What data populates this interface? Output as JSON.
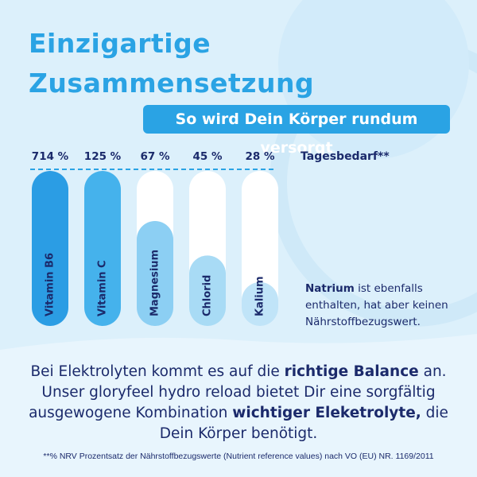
{
  "chart_data": {
    "type": "bar",
    "title": "Einzigartige Zusammensetzung",
    "subtitle": "So wird Dein Körper rundum versorgt",
    "reference_label": "Tagesbedarf**",
    "categories": [
      "Vitamin B6",
      "Vitamin C",
      "Magnesium",
      "Chlorid",
      "Kalium"
    ],
    "values": [
      714,
      125,
      67,
      45,
      28
    ],
    "value_labels": [
      "714 %",
      "125 %",
      "67 %",
      "45 %",
      "28 %"
    ],
    "colors": [
      "#2b9de4",
      "#45b2ec",
      "#8ccff3",
      "#a8dbf5",
      "#c0e4f8"
    ],
    "ylim": [
      0,
      100
    ]
  },
  "note": [
    {
      "text": "Natrium",
      "bold": true
    },
    {
      "text": " ist ebenfalls enthalten, hat aber keinen Nährstoffbezugswert.",
      "bold": false
    }
  ],
  "paragraph": [
    {
      "text": "Bei Elektrolyten kommt es auf die ",
      "bold": false
    },
    {
      "text": "richtige Balance",
      "bold": true
    },
    {
      "text": " an. Unser gloryfeel hydro reload bietet Dir eine sorgfältig ausgewogene Kombination ",
      "bold": false
    },
    {
      "text": "wichtiger Eleketrolyte,",
      "bold": true
    },
    {
      "text": " die Dein Körper benötigt.",
      "bold": false
    }
  ],
  "footnote": "**% NRV Prozentsatz der Nährstoffbezugswerte (Nutrient reference values) nach VO (EU) NR. 1169/2011"
}
